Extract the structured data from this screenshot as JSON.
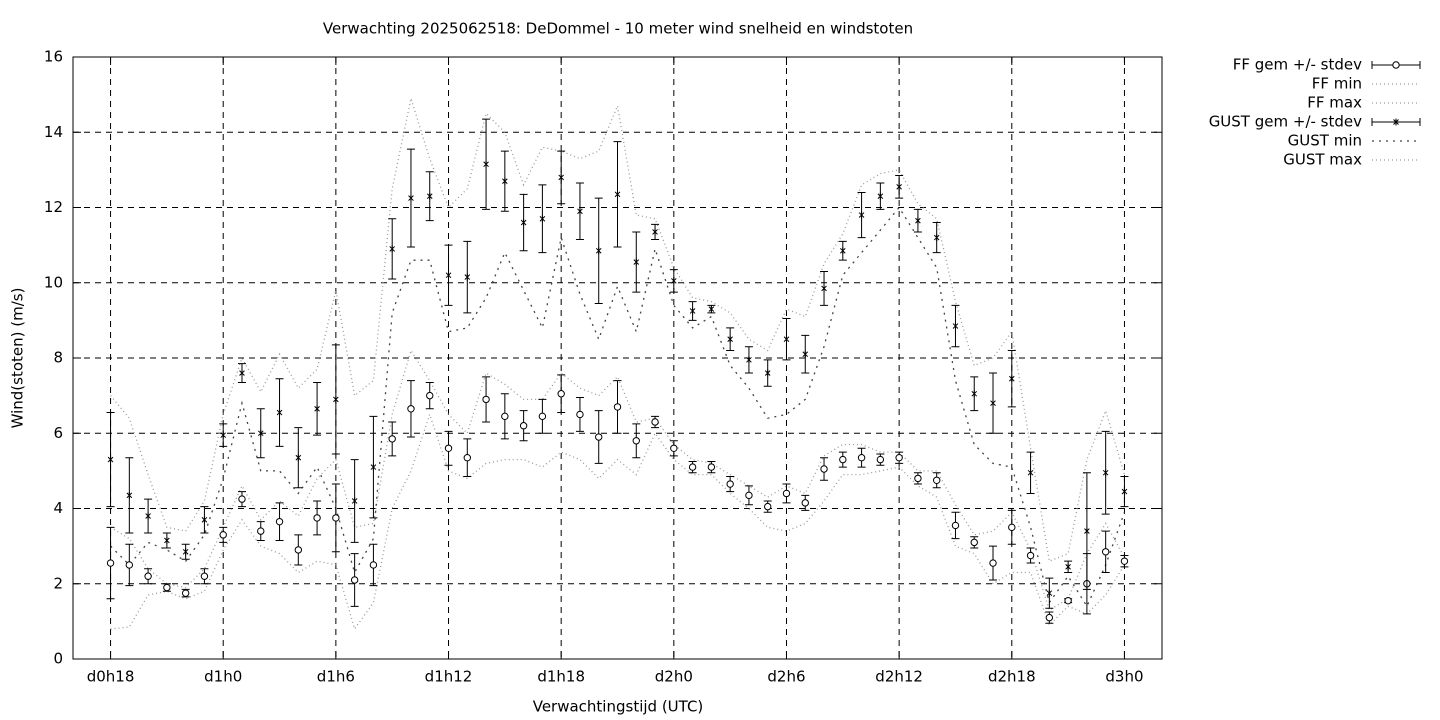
{
  "chart_data": {
    "type": "errorbar",
    "title": "Verwachting 2025062518: DeDommel - 10 meter wind snelheid en windstoten",
    "x_label": "Verwachtingstijd (UTC)",
    "y_label": "Wind(stoten) (m/s)",
    "x": [
      0,
      1,
      2,
      3,
      4,
      5,
      6,
      7,
      8,
      9,
      10,
      11,
      12,
      13,
      14,
      15,
      16,
      17,
      18,
      19,
      20,
      21,
      22,
      23,
      24,
      25,
      26,
      27,
      28,
      29,
      30,
      31,
      32,
      33,
      34,
      35,
      36,
      37,
      38,
      39,
      40,
      41,
      42,
      43,
      44,
      45,
      46,
      47,
      48,
      49,
      50,
      51,
      52,
      53,
      54
    ],
    "xlim": [
      -2,
      56
    ],
    "xticks": [
      {
        "value": 0,
        "label": "d0h18"
      },
      {
        "value": 6,
        "label": "d1h0"
      },
      {
        "value": 12,
        "label": "d1h6"
      },
      {
        "value": 18,
        "label": "d1h12"
      },
      {
        "value": 24,
        "label": "d1h18"
      },
      {
        "value": 30,
        "label": "d2h0"
      },
      {
        "value": 36,
        "label": "d2h6"
      },
      {
        "value": 42,
        "label": "d2h12"
      },
      {
        "value": 48,
        "label": "d2h18"
      },
      {
        "value": 54,
        "label": "d3h0"
      }
    ],
    "ylim": [
      0,
      16
    ],
    "yticks": [
      0,
      2,
      4,
      6,
      8,
      10,
      12,
      14,
      16
    ],
    "grid": true,
    "legend": "outside-right",
    "series": [
      {
        "name": "FF gem +/- stdev",
        "color": "#000000",
        "marker": "circle",
        "values": [
          2.55,
          2.5,
          2.2,
          1.9,
          1.75,
          2.2,
          3.3,
          4.25,
          3.4,
          3.65,
          2.9,
          3.75,
          3.75,
          2.1,
          2.5,
          5.85,
          6.65,
          7.0,
          5.6,
          5.35,
          6.9,
          6.45,
          6.2,
          6.45,
          7.05,
          6.5,
          5.9,
          6.7,
          5.8,
          6.3,
          5.6,
          5.1,
          5.1,
          4.65,
          4.35,
          4.05,
          4.4,
          4.15,
          5.05,
          5.3,
          5.35,
          5.3,
          5.35,
          4.8,
          4.75,
          3.55,
          3.1,
          2.55,
          3.5,
          2.75,
          1.1,
          1.55,
          2.0,
          2.85,
          2.6
        ],
        "errors": [
          0.95,
          0.55,
          0.2,
          0.1,
          0.1,
          0.2,
          0.2,
          0.2,
          0.25,
          0.5,
          0.4,
          0.45,
          0.9,
          0.7,
          0.55,
          0.45,
          0.75,
          0.35,
          0.45,
          0.5,
          0.6,
          0.6,
          0.4,
          0.45,
          0.5,
          0.45,
          0.7,
          0.7,
          0.45,
          0.15,
          0.2,
          0.15,
          0.15,
          0.2,
          0.25,
          0.15,
          0.25,
          0.2,
          0.3,
          0.2,
          0.25,
          0.15,
          0.15,
          0.15,
          0.2,
          0.35,
          0.15,
          0.45,
          0.45,
          0.2,
          0.15,
          0.05,
          0.8,
          0.55,
          0.15
        ]
      },
      {
        "name": "FF min",
        "color": "#999999",
        "dash": "1,3",
        "values": [
          0.8,
          0.85,
          1.7,
          1.8,
          1.6,
          1.8,
          2.9,
          3.7,
          3.0,
          2.8,
          2.3,
          2.6,
          2.5,
          0.8,
          1.5,
          4.0,
          5.0,
          6.5,
          5.0,
          4.8,
          5.2,
          5.3,
          5.3,
          5.1,
          5.5,
          5.3,
          4.8,
          5.3,
          4.9,
          6.0,
          5.3,
          4.9,
          4.9,
          4.4,
          4.0,
          3.5,
          3.4,
          3.6,
          4.2,
          4.9,
          4.9,
          5.0,
          5.1,
          4.6,
          4.3,
          3.0,
          2.8,
          2.0,
          2.3,
          2.3,
          0.9,
          1.4,
          1.2,
          1.7,
          2.5
        ]
      },
      {
        "name": "FF max",
        "color": "#999999",
        "dash": "1,3",
        "values": [
          3.5,
          3.2,
          2.4,
          2.0,
          1.9,
          2.4,
          3.5,
          4.6,
          3.7,
          4.2,
          3.8,
          4.8,
          5.3,
          3.5,
          3.6,
          6.5,
          8.2,
          7.4,
          6.5,
          6.0,
          7.6,
          7.3,
          6.9,
          6.9,
          7.6,
          7.2,
          7.0,
          7.5,
          6.3,
          6.4,
          5.7,
          5.3,
          5.2,
          4.9,
          4.6,
          4.3,
          4.6,
          4.4,
          5.4,
          5.7,
          5.7,
          5.5,
          5.5,
          5.0,
          5.0,
          4.1,
          3.3,
          3.4,
          3.9,
          2.9,
          1.3,
          1.6,
          2.8,
          3.6,
          2.7
        ]
      },
      {
        "name": "GUST gem +/- stdev",
        "color": "#000000",
        "marker": "star",
        "values": [
          5.3,
          4.35,
          3.8,
          3.15,
          2.85,
          3.7,
          5.95,
          7.6,
          6.0,
          6.55,
          5.35,
          6.65,
          6.9,
          4.2,
          5.1,
          10.9,
          12.25,
          12.3,
          10.2,
          10.15,
          13.15,
          12.7,
          11.6,
          11.7,
          12.8,
          11.9,
          10.85,
          12.35,
          10.55,
          11.35,
          10.05,
          9.25,
          9.3,
          8.5,
          7.95,
          7.6,
          8.5,
          8.1,
          9.85,
          10.85,
          11.8,
          12.3,
          12.55,
          11.65,
          11.2,
          8.85,
          7.05,
          6.8,
          7.45,
          4.95,
          1.75,
          2.45,
          3.4,
          4.95,
          4.45
        ],
        "errors": [
          1.25,
          1.0,
          0.45,
          0.2,
          0.2,
          0.35,
          0.3,
          0.25,
          0.65,
          0.9,
          0.8,
          0.7,
          1.45,
          1.1,
          1.35,
          0.8,
          1.3,
          0.65,
          0.8,
          0.95,
          1.2,
          0.8,
          0.75,
          0.9,
          0.7,
          0.75,
          1.4,
          1.4,
          0.8,
          0.2,
          0.3,
          0.25,
          0.1,
          0.3,
          0.35,
          0.35,
          0.55,
          0.5,
          0.45,
          0.25,
          0.6,
          0.35,
          0.3,
          0.3,
          0.4,
          0.55,
          0.45,
          0.8,
          0.75,
          0.55,
          0.4,
          0.15,
          1.55,
          1.1,
          0.4
        ]
      },
      {
        "name": "GUST min",
        "color": "#444444",
        "dash": "2,5",
        "values": [
          3.0,
          2.5,
          3.1,
          2.9,
          2.6,
          3.3,
          4.8,
          6.8,
          5.0,
          5.0,
          4.4,
          5.1,
          4.0,
          2.3,
          3.2,
          9.2,
          10.6,
          10.6,
          8.7,
          8.8,
          9.6,
          10.8,
          9.8,
          8.8,
          11.2,
          9.7,
          8.5,
          9.9,
          8.7,
          10.9,
          9.4,
          8.8,
          9.1,
          7.8,
          7.2,
          6.4,
          6.5,
          6.9,
          8.3,
          10.2,
          10.8,
          11.4,
          12.0,
          11.2,
          10.4,
          7.4,
          5.7,
          5.2,
          5.1,
          3.5,
          1.5,
          2.2,
          1.4,
          2.5,
          3.9
        ]
      },
      {
        "name": "GUST max",
        "color": "#999999",
        "dash": "1,3",
        "values": [
          7.0,
          6.4,
          4.9,
          3.5,
          3.4,
          4.2,
          6.5,
          8.0,
          7.1,
          8.1,
          7.2,
          7.7,
          9.8,
          7.0,
          7.4,
          12.5,
          14.9,
          13.3,
          12.0,
          12.5,
          14.5,
          14.0,
          12.6,
          13.6,
          13.5,
          13.3,
          13.5,
          14.7,
          11.8,
          11.7,
          10.4,
          9.6,
          9.5,
          9.2,
          8.5,
          8.2,
          9.3,
          9.1,
          10.5,
          11.3,
          12.6,
          12.9,
          13.0,
          12.1,
          11.7,
          9.5,
          7.8,
          8.0,
          8.7,
          5.6,
          2.6,
          2.8,
          5.3,
          6.6,
          4.9
        ]
      }
    ]
  }
}
